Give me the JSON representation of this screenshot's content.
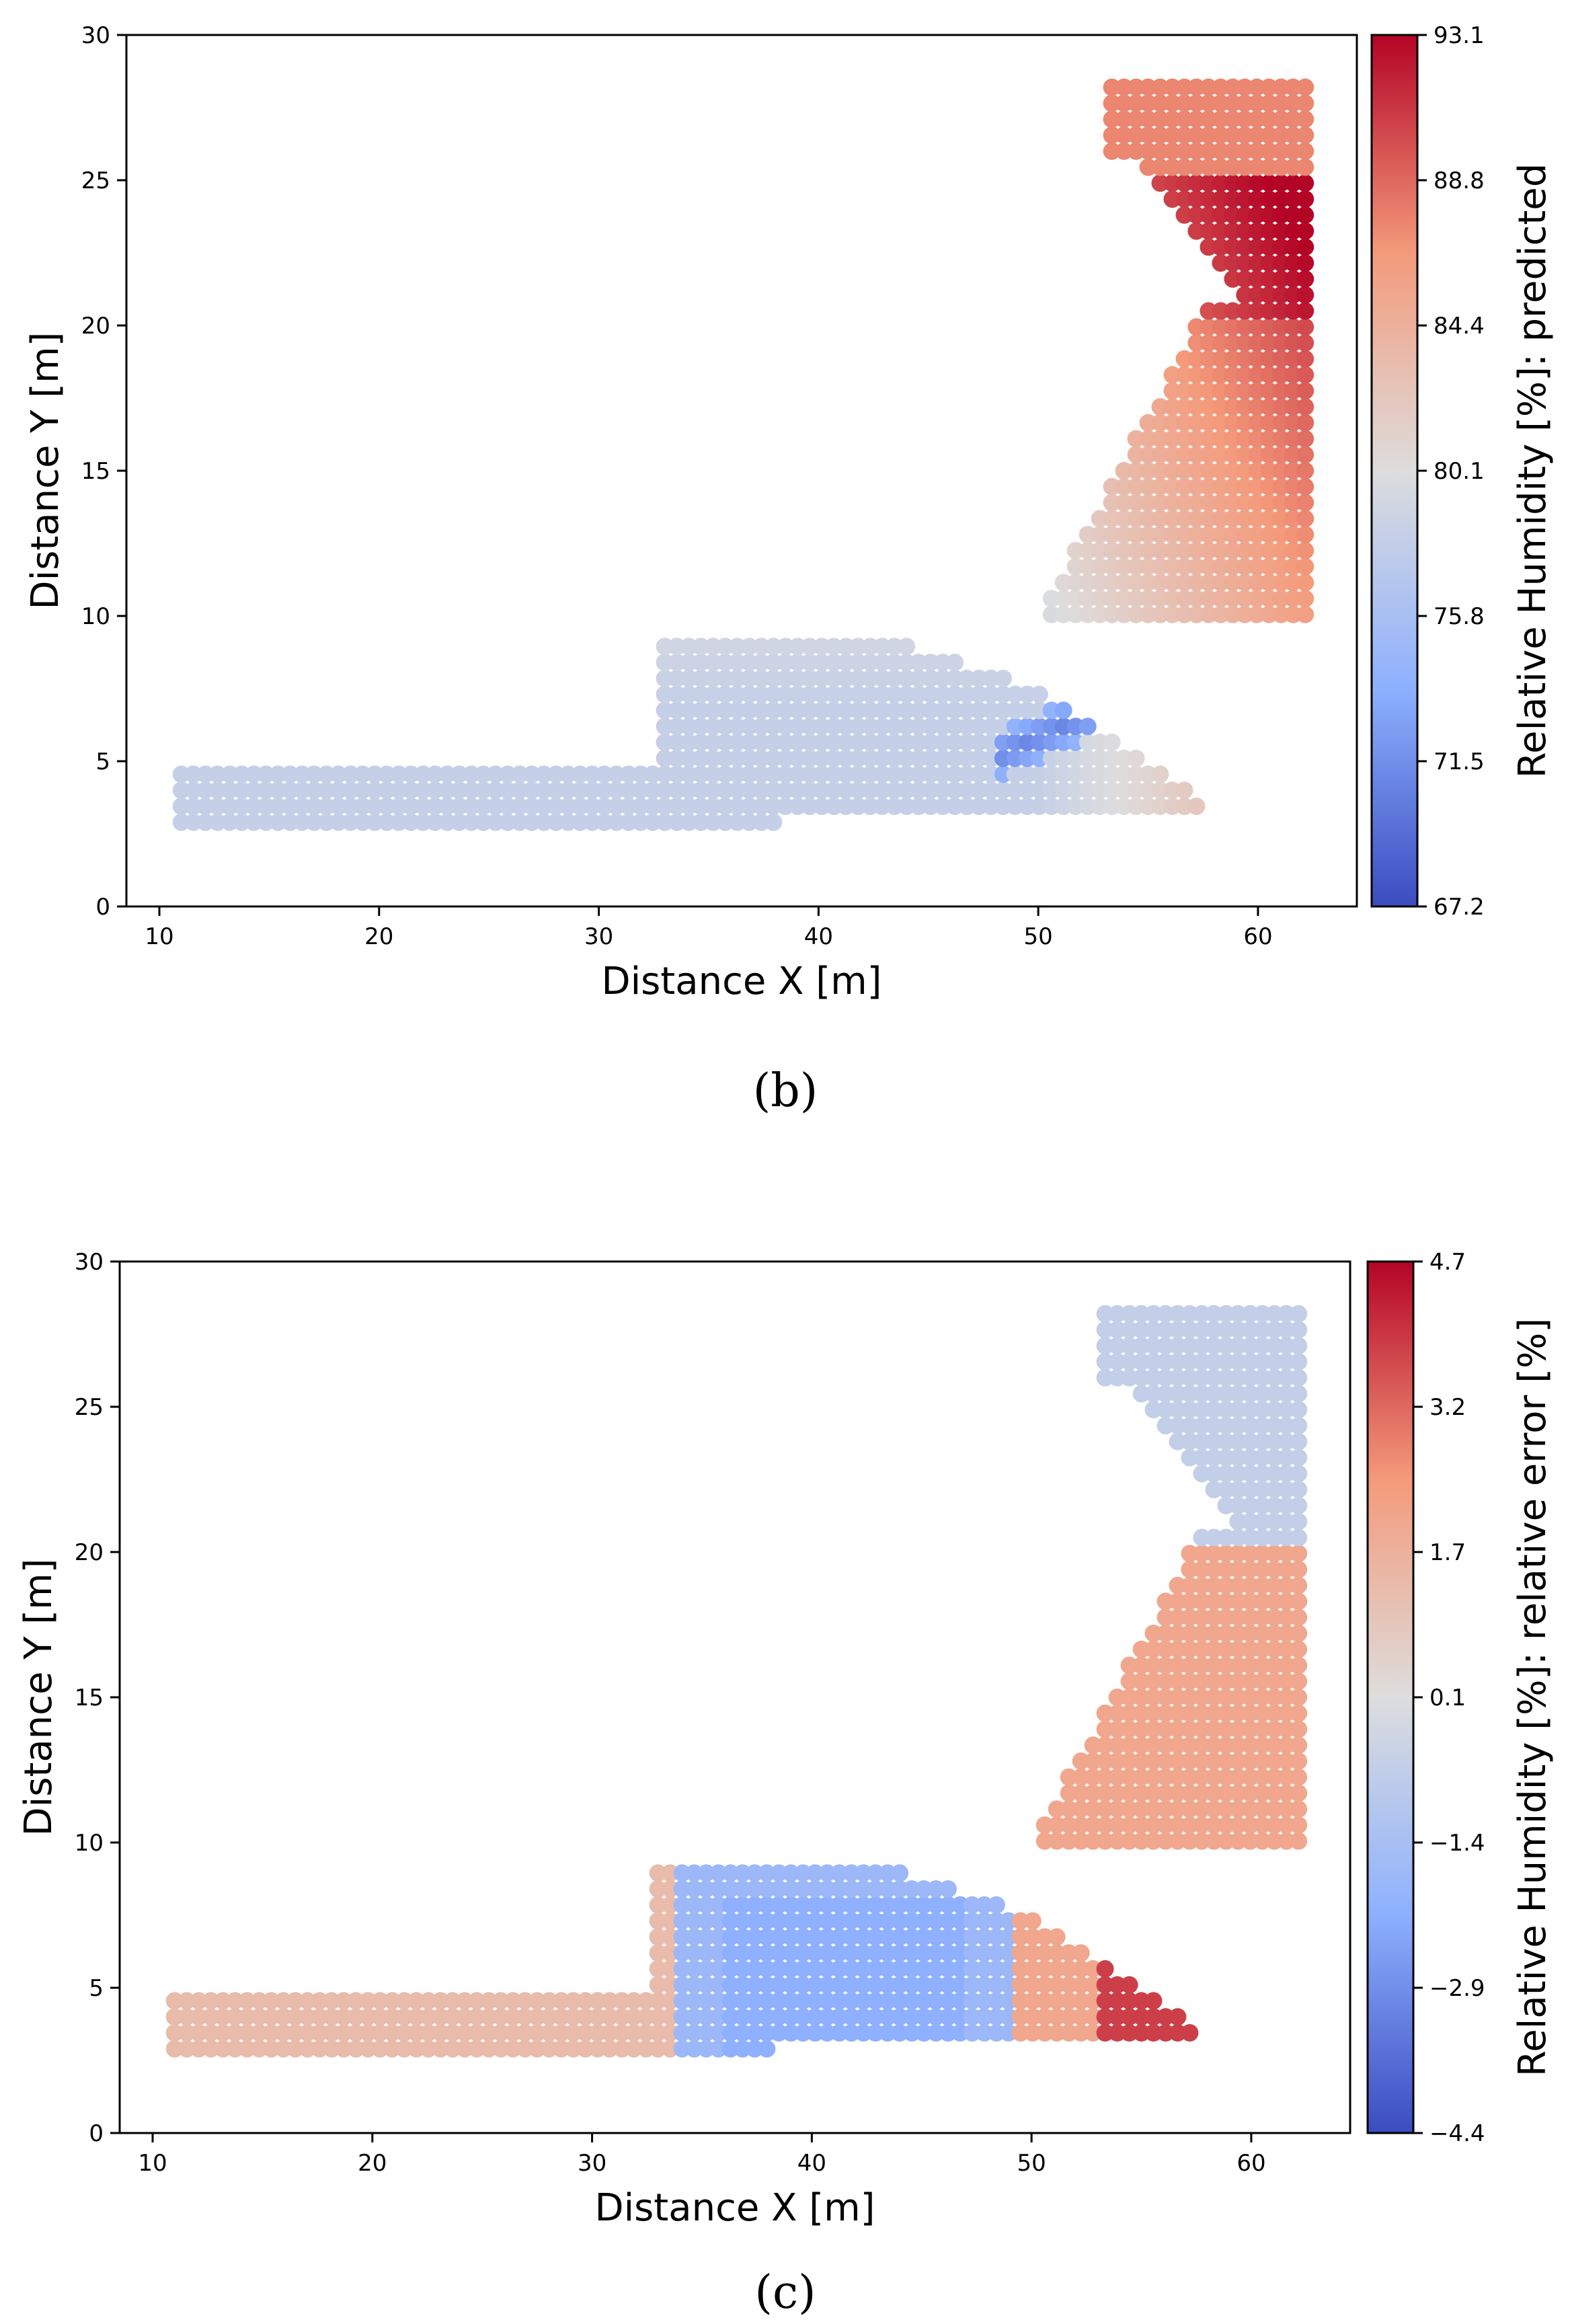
{
  "chart_data": [
    {
      "type": "scatter",
      "panel_label": "(b)",
      "xlabel": "Distance X [m]",
      "ylabel": "Distance Y [m]",
      "xlim": [
        8.5,
        64.5
      ],
      "ylim": [
        0,
        30
      ],
      "xticks": [
        10,
        20,
        30,
        40,
        50,
        60
      ],
      "yticks": [
        0,
        5,
        10,
        15,
        20,
        25,
        30
      ],
      "colorbar": {
        "label": "Relative Humidity [%]: predicted",
        "colormap": "coolwarm",
        "min": 67.2,
        "max": 93.1,
        "ticks": [
          "67.2",
          "71.5",
          "75.8",
          "80.1",
          "84.4",
          "88.8",
          "93.1"
        ]
      },
      "fields": [
        {
          "region": "lower-strip",
          "x_range": [
            11,
            33
          ],
          "y_range": [
            3,
            5
          ],
          "value": 77.8
        },
        {
          "region": "middle-block",
          "x_range": [
            33,
            50
          ],
          "y_range": [
            3.5,
            9.5
          ],
          "value": 78.5
        },
        {
          "region": "arc-inner-low",
          "x_range": [
            48,
            56
          ],
          "y_range": [
            5,
            8
          ],
          "value": 72.0
        },
        {
          "region": "arc-body",
          "x_range": [
            50,
            62
          ],
          "y_range": [
            8,
            21
          ],
          "value": 82.5
        },
        {
          "region": "upper-column",
          "x_range": [
            57,
            62
          ],
          "y_range": [
            13,
            28
          ],
          "value": 87.0
        },
        {
          "region": "top-block",
          "x_range": [
            53,
            62
          ],
          "y_range": [
            25.5,
            28.3
          ],
          "value": 87.5
        }
      ]
    },
    {
      "type": "scatter",
      "panel_label": "(c)",
      "xlabel": "Distance X [m]",
      "ylabel": "Distance Y [m]",
      "xlim": [
        8.5,
        64.5
      ],
      "ylim": [
        0,
        30
      ],
      "xticks": [
        10,
        20,
        30,
        40,
        50,
        60
      ],
      "yticks": [
        0,
        5,
        10,
        15,
        20,
        25,
        30
      ],
      "colorbar": {
        "label": "Relative Humidity [%]: relative error [%]",
        "colormap": "coolwarm",
        "min": -4.4,
        "max": 4.7,
        "ticks": [
          "−4.4",
          "−2.9",
          "−1.4",
          "0.1",
          "1.7",
          "3.2",
          "4.7"
        ]
      },
      "fields": [
        {
          "region": "lower-strip",
          "x_range": [
            11,
            33
          ],
          "y_range": [
            3,
            5
          ],
          "value": 1.4
        },
        {
          "region": "middle-block",
          "x_range": [
            36,
            48
          ],
          "y_range": [
            4,
            8
          ],
          "value": -1.8
        },
        {
          "region": "arc-body",
          "x_range": [
            50,
            62
          ],
          "y_range": [
            8,
            21
          ],
          "value": 2.2
        },
        {
          "region": "upper-column",
          "x_range": [
            59,
            62
          ],
          "y_range": [
            21,
            28
          ],
          "value": -0.8
        },
        {
          "region": "top-block",
          "x_range": [
            53,
            62
          ],
          "y_range": [
            25.5,
            28.3
          ],
          "value": -0.6
        }
      ]
    }
  ]
}
